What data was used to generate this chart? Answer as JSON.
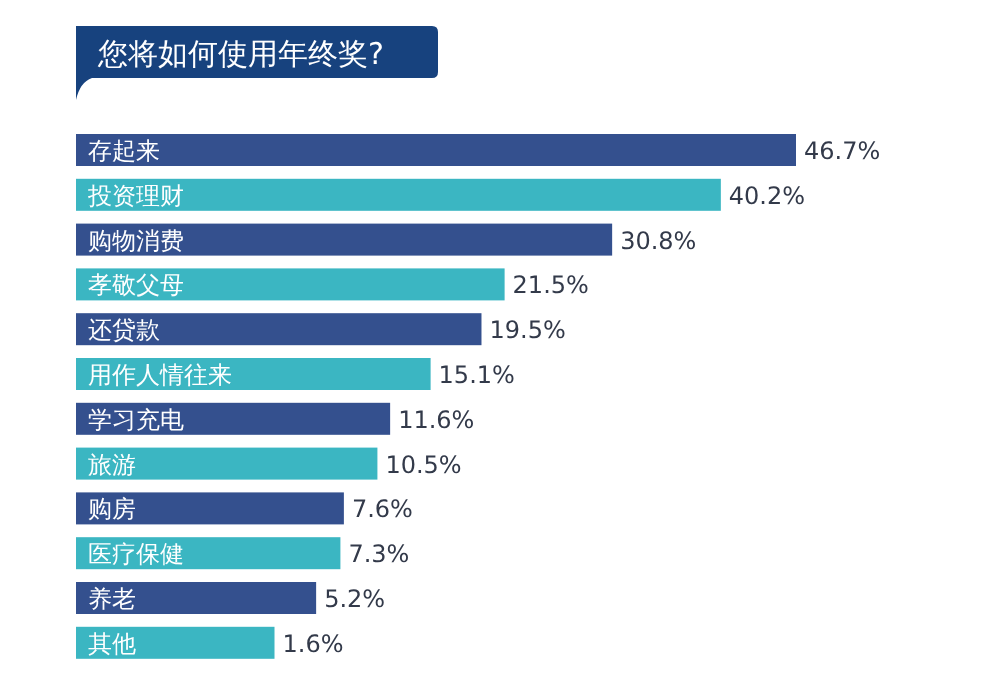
{
  "chart_data": {
    "type": "bar",
    "orientation": "horizontal",
    "title": "您将如何使用年终奖?",
    "categories": [
      "存起来",
      "投资理财",
      "购物消费",
      "孝敬父母",
      "还贷款",
      "用作人情往来",
      "学习充电",
      "旅游",
      "购房",
      "医疗保健",
      "养老",
      "其他"
    ],
    "values": [
      46.7,
      40.2,
      30.8,
      21.5,
      19.5,
      15.1,
      11.6,
      10.5,
      7.6,
      7.3,
      5.2,
      1.6
    ],
    "value_labels": [
      "46.7%",
      "40.2%",
      "30.8%",
      "21.5%",
      "19.5%",
      "15.1%",
      "11.6%",
      "10.5%",
      "7.6%",
      "7.3%",
      "5.2%",
      "1.6%"
    ],
    "colors": [
      "#34508e",
      "#3bb6c2",
      "#34508e",
      "#3bb6c2",
      "#34508e",
      "#3bb6c2",
      "#34508e",
      "#3bb6c2",
      "#34508e",
      "#3bb6c2",
      "#34508e",
      "#3bb6c2"
    ]
  }
}
